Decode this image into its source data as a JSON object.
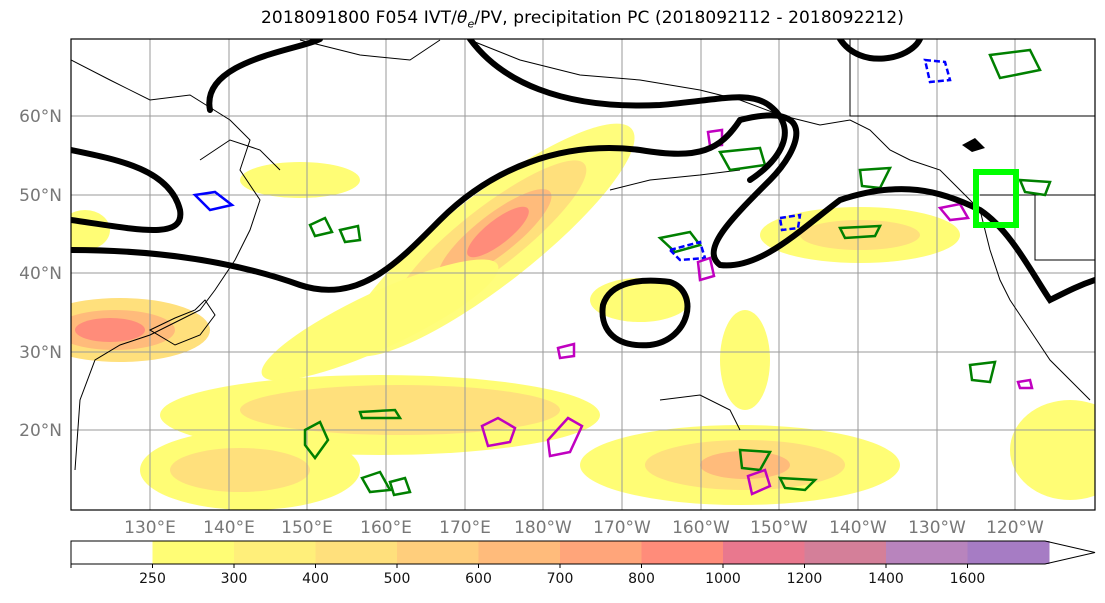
{
  "title": {
    "main": "2018091800 F054 IVT/",
    "theta": "θ",
    "sub": "e",
    "rest": "/PV, precipitation PC (2018092112 - 2018092212)"
  },
  "map": {
    "lat_labels": [
      "60°N",
      "50°N",
      "40°N",
      "30°N",
      "20°N"
    ],
    "lon_labels": [
      "130°E",
      "140°E",
      "150°E",
      "160°E",
      "170°E",
      "180°W",
      "170°W",
      "160°W",
      "150°W",
      "140°W",
      "130°W",
      "120°W"
    ],
    "highlight_box_color": "#00ff00",
    "contour_colors": {
      "pv": "#000000",
      "precip_positive": "#008000",
      "precip_negative": "#0000ff",
      "theta_e": "#c000c0"
    }
  },
  "colorbar": {
    "ticks": [
      "250",
      "300",
      "400",
      "500",
      "600",
      "700",
      "800",
      "1000",
      "1200",
      "1400",
      "1600"
    ],
    "colors": [
      "#ffffff",
      "#fffd75",
      "#ffef7a",
      "#ffe07c",
      "#ffce7c",
      "#ffbb7b",
      "#ffa57a",
      "#ff8c7a",
      "#e9788e",
      "#d47f99",
      "#b884bd",
      "#a67cc4"
    ]
  }
}
